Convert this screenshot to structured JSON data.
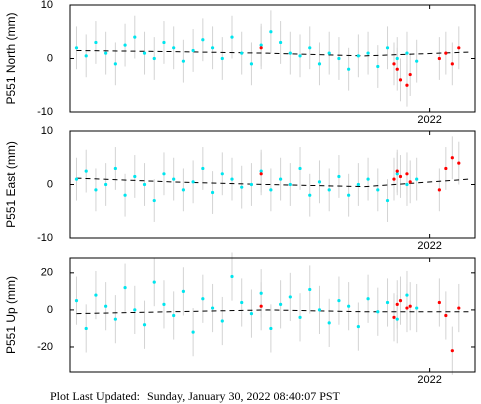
{
  "chart_data": [
    {
      "type": "scatter",
      "ylabel": "P551 North (mm)",
      "xlim": [
        2020.89,
        2022.14
      ],
      "xticks": [
        2022
      ],
      "ylim": [
        -10,
        10
      ],
      "yticks": [
        -10,
        0,
        10
      ],
      "series": [
        {
          "color": "#00e5ee",
          "error": 4,
          "x": [
            2020.91,
            2020.94,
            2020.97,
            2021.0,
            2021.03,
            2021.06,
            2021.09,
            2021.12,
            2021.15,
            2021.18,
            2021.21,
            2021.24,
            2021.27,
            2021.3,
            2021.33,
            2021.36,
            2021.39,
            2021.42,
            2021.45,
            2021.48,
            2021.51,
            2021.54,
            2021.57,
            2021.6,
            2021.63,
            2021.66,
            2021.69,
            2021.72,
            2021.75,
            2021.78,
            2021.81,
            2021.84,
            2021.87,
            2021.9,
            2021.93,
            2021.96
          ],
          "values": [
            2,
            0.5,
            3,
            1,
            -1,
            2.5,
            4,
            1,
            0,
            3,
            2,
            -0.5,
            1.5,
            3.5,
            2,
            0,
            4,
            1,
            -1,
            2.5,
            5,
            3,
            1,
            0.5,
            2,
            -1,
            1,
            0,
            -2,
            0.5,
            1,
            -1.5,
            2,
            0,
            1,
            -0.5
          ]
        },
        {
          "color": "#ff0000",
          "error": 4,
          "x": [
            2021.48,
            2021.89,
            2021.9,
            2021.91,
            2021.93,
            2021.94,
            2022.03,
            2022.05,
            2022.07,
            2022.09
          ],
          "values": [
            2,
            -1,
            -2,
            -4,
            -5,
            -3,
            0,
            1,
            -1,
            2
          ]
        },
        {
          "kind": "line",
          "dash": true,
          "color": "#000000",
          "x": [
            2020.91,
            2021.2,
            2021.5,
            2021.8,
            2022.12
          ],
          "values": [
            1.5,
            1.3,
            1,
            0.5,
            1.2
          ]
        }
      ]
    },
    {
      "type": "scatter",
      "ylabel": "P551 East (mm)",
      "xlim": [
        2020.89,
        2022.14
      ],
      "xticks": [
        2022
      ],
      "ylim": [
        -10,
        10
      ],
      "yticks": [
        -10,
        0,
        10
      ],
      "series": [
        {
          "color": "#00e5ee",
          "error": 4,
          "x": [
            2020.91,
            2020.94,
            2020.97,
            2021.0,
            2021.03,
            2021.06,
            2021.09,
            2021.12,
            2021.15,
            2021.18,
            2021.21,
            2021.24,
            2021.27,
            2021.3,
            2021.33,
            2021.36,
            2021.39,
            2021.42,
            2021.45,
            2021.48,
            2021.51,
            2021.54,
            2021.57,
            2021.6,
            2021.63,
            2021.66,
            2021.69,
            2021.72,
            2021.75,
            2021.78,
            2021.81,
            2021.84,
            2021.87,
            2021.9,
            2021.93,
            2021.96
          ],
          "values": [
            1,
            2.5,
            -1,
            0,
            3,
            -2,
            1.5,
            0,
            -3,
            2,
            1,
            -1,
            0.5,
            3,
            -1.5,
            2,
            1,
            -0.5,
            0,
            2.5,
            -1,
            1,
            0,
            3,
            -2,
            0.5,
            -1,
            1.5,
            -2,
            0,
            1,
            -1,
            -3,
            2,
            0,
            1
          ]
        },
        {
          "color": "#ff0000",
          "error": 4,
          "x": [
            2021.48,
            2021.89,
            2021.9,
            2021.91,
            2021.93,
            2021.94,
            2022.03,
            2022.05,
            2022.07,
            2022.09
          ],
          "values": [
            2,
            1,
            2.5,
            1.5,
            2,
            0.5,
            -1,
            3,
            5,
            4
          ]
        },
        {
          "kind": "line",
          "dash": true,
          "color": "#000000",
          "x": [
            2020.91,
            2021.2,
            2021.5,
            2021.8,
            2022.12
          ],
          "values": [
            1.2,
            0.5,
            0,
            -0.4,
            1
          ]
        }
      ]
    },
    {
      "type": "scatter",
      "ylabel": "P551 Up (mm)",
      "xlim": [
        2020.89,
        2022.14
      ],
      "xticks": [
        2022
      ],
      "ylim": [
        -33.5,
        28
      ],
      "yticks": [
        -20,
        0,
        20
      ],
      "series": [
        {
          "color": "#00e5ee",
          "error": 13,
          "x": [
            2020.91,
            2020.94,
            2020.97,
            2021.0,
            2021.03,
            2021.06,
            2021.09,
            2021.12,
            2021.15,
            2021.18,
            2021.21,
            2021.24,
            2021.27,
            2021.3,
            2021.33,
            2021.36,
            2021.39,
            2021.42,
            2021.45,
            2021.48,
            2021.51,
            2021.54,
            2021.57,
            2021.6,
            2021.63,
            2021.66,
            2021.69,
            2021.72,
            2021.75,
            2021.78,
            2021.81,
            2021.84,
            2021.87,
            2021.9,
            2021.93,
            2021.96
          ],
          "values": [
            5,
            -10,
            8,
            2,
            -5,
            12,
            0,
            -8,
            15,
            3,
            -3,
            10,
            -12,
            6,
            1,
            -6,
            18,
            4,
            -2,
            9,
            -10,
            3,
            7,
            -4,
            11,
            0,
            -7,
            5,
            2,
            -9,
            6,
            -1,
            4,
            -5,
            8,
            1
          ]
        },
        {
          "color": "#ff0000",
          "error": 13,
          "x": [
            2021.48,
            2021.89,
            2021.9,
            2021.91,
            2021.93,
            2021.94,
            2022.03,
            2022.05,
            2022.07,
            2022.09
          ],
          "values": [
            2,
            -4,
            3,
            5,
            1,
            2,
            4,
            -3,
            -22,
            1
          ]
        },
        {
          "kind": "line",
          "dash": true,
          "color": "#000000",
          "x": [
            2020.91,
            2021.2,
            2021.5,
            2021.8,
            2022.12
          ],
          "values": [
            -2,
            -1,
            0,
            -1,
            -1
          ]
        }
      ]
    }
  ],
  "footer": {
    "label": "Plot Last Updated:",
    "date": "Sunday, January 30, 2022 08:40:07 PST"
  }
}
